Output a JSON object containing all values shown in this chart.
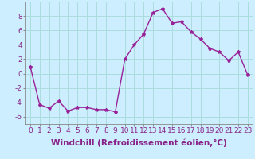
{
  "x": [
    0,
    1,
    2,
    3,
    4,
    5,
    6,
    7,
    8,
    9,
    10,
    11,
    12,
    13,
    14,
    15,
    16,
    17,
    18,
    19,
    20,
    21,
    22,
    23
  ],
  "y": [
    1,
    -4.3,
    -4.8,
    -3.8,
    -5.2,
    -4.7,
    -4.7,
    -5.0,
    -5.0,
    -5.3,
    2.0,
    4.0,
    5.5,
    8.5,
    9.0,
    7.0,
    7.2,
    5.8,
    4.8,
    3.5,
    3.0,
    1.8,
    3.0,
    -0.2
  ],
  "line_color": "#992299",
  "marker": "*",
  "marker_size": 3,
  "bg_color": "#cceeff",
  "grid_color": "#aadddd",
  "xlabel": "Windchill (Refroidissement éolien,°C)",
  "ylabel": "",
  "ylim": [
    -7,
    10
  ],
  "xlim": [
    -0.5,
    23.5
  ],
  "yticks": [
    -6,
    -4,
    -2,
    0,
    2,
    4,
    6,
    8
  ],
  "xticks": [
    0,
    1,
    2,
    3,
    4,
    5,
    6,
    7,
    8,
    9,
    10,
    11,
    12,
    13,
    14,
    15,
    16,
    17,
    18,
    19,
    20,
    21,
    22,
    23
  ],
  "tick_fontsize": 6.5,
  "xlabel_fontsize": 7.5,
  "tick_color": "#882288",
  "label_color": "#882288"
}
